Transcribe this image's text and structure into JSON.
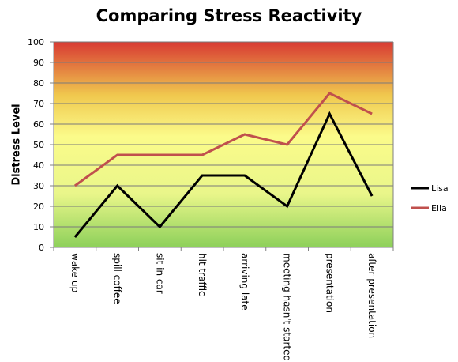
{
  "chart_data": {
    "type": "line",
    "title": "Comparing Stress Reactivity",
    "xlabel": "",
    "ylabel": "Distress Level",
    "ylim": [
      0,
      100
    ],
    "y_ticks": [
      "0",
      "10",
      "20",
      "30",
      "40",
      "50",
      "60",
      "70",
      "80",
      "90",
      "100"
    ],
    "grid": true,
    "legend_position": "right",
    "categories": [
      "wake up",
      "spill coffee",
      "sit in car",
      "hit traffic",
      "arriving late",
      "meeting hasn't started",
      "presentation",
      "after presentation"
    ],
    "series": [
      {
        "name": "Lisa",
        "color": "#000000",
        "values": [
          5,
          30,
          10,
          35,
          35,
          20,
          65,
          25
        ]
      },
      {
        "name": "Ella",
        "color": "#c0504d",
        "values": [
          30,
          45,
          45,
          45,
          55,
          50,
          75,
          65
        ]
      }
    ],
    "background_gradient": [
      "#d83a33",
      "#f0c84e",
      "#fbfb8a",
      "#e9f68a",
      "#8dd05a"
    ]
  }
}
